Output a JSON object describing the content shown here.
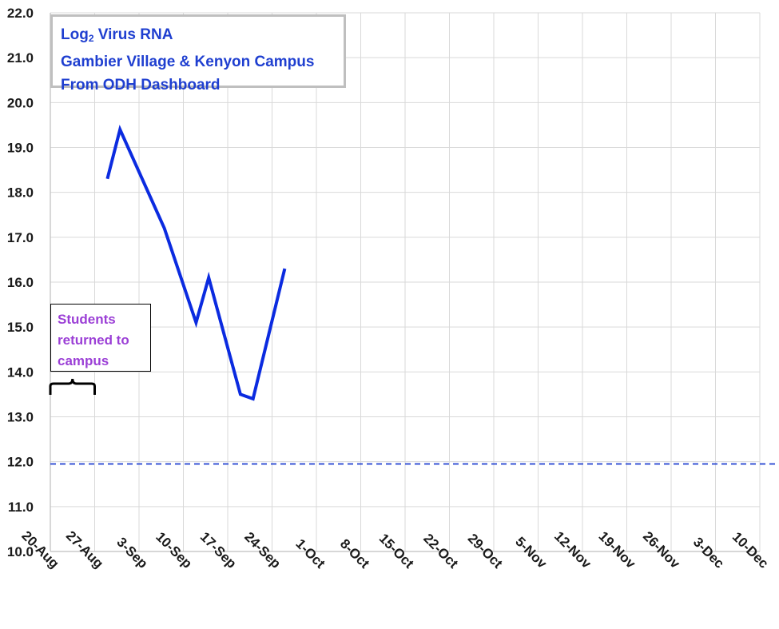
{
  "chart_data": {
    "type": "line",
    "title_lines": [
      "Log",
      "Virus RNA",
      "Gambier Village &  Kenyon Campus",
      "From ODH Dashboard"
    ],
    "title_subscript": "2",
    "xlabel": "",
    "ylabel": "",
    "ylim": [
      10.0,
      22.0
    ],
    "y_ticks": [
      "10.0",
      "11.0",
      "12.0",
      "13.0",
      "14.0",
      "15.0",
      "16.0",
      "17.0",
      "18.0",
      "19.0",
      "20.0",
      "21.0",
      "22.0"
    ],
    "x_range": [
      "2020-08-20",
      "2020-12-10"
    ],
    "x_ticks": [
      "20-Aug",
      "27-Aug",
      "3-Sep",
      "10-Sep",
      "17-Sep",
      "24-Sep",
      "1-Oct",
      "8-Oct",
      "15-Oct",
      "22-Oct",
      "29-Oct",
      "5-Nov",
      "12-Nov",
      "19-Nov",
      "26-Nov",
      "3-Dec",
      "10-Dec"
    ],
    "grid": true,
    "series": [
      {
        "color": "#0b2be0",
        "points": [
          {
            "x": "2020-08-29",
            "y": 18.3
          },
          {
            "x": "2020-08-31",
            "y": 19.4
          },
          {
            "x": "2020-09-07",
            "y": 17.2
          },
          {
            "x": "2020-09-12",
            "y": 15.1
          },
          {
            "x": "2020-09-14",
            "y": 16.1
          },
          {
            "x": "2020-09-19",
            "y": 13.5
          },
          {
            "x": "2020-09-21",
            "y": 13.4
          },
          {
            "x": "2020-09-26",
            "y": 16.3
          }
        ]
      }
    ],
    "reference_line": {
      "y": 11.95,
      "style": "dashed",
      "color": "#1f3fd0"
    },
    "annotation": {
      "lines": [
        "Students",
        "returned to",
        "campus"
      ],
      "color": "#9b3fd6",
      "x_span": [
        "2020-08-20",
        "2020-08-27"
      ]
    }
  }
}
